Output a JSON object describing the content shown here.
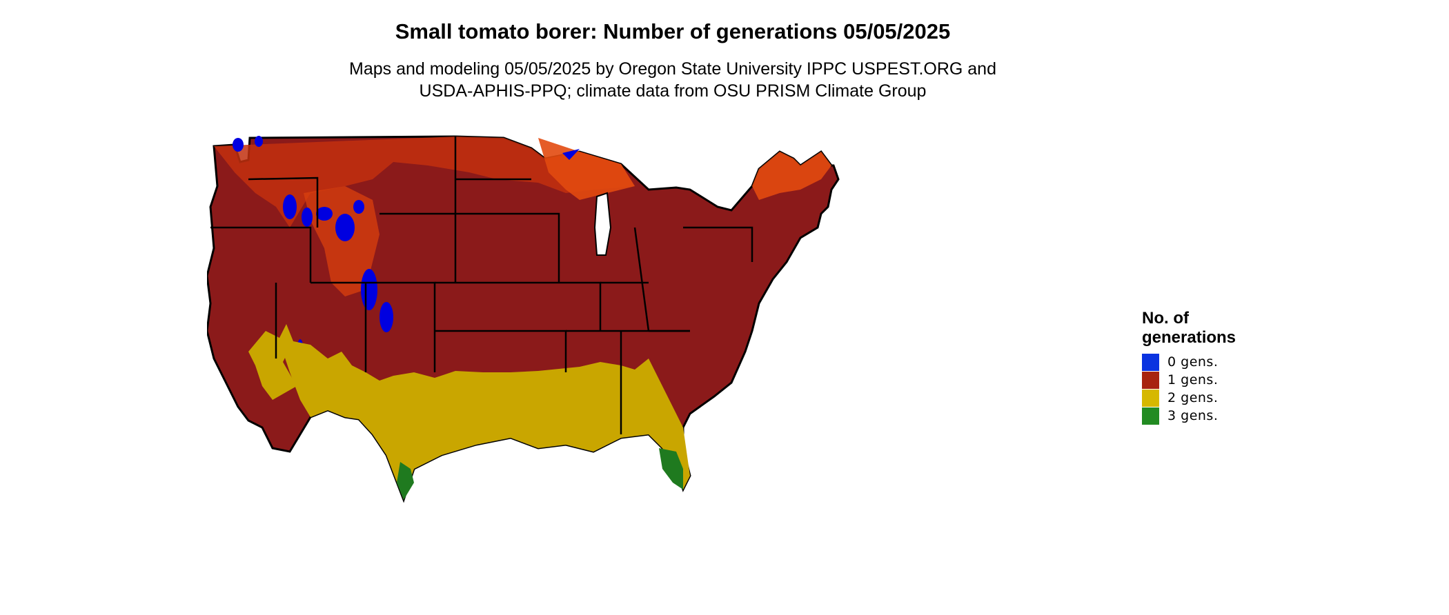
{
  "title": "Small tomato borer: Number of generations 05/05/2025",
  "subtitle": {
    "line1": "Maps and modeling 05/05/2025 by Oregon State University IPPC USPEST.ORG and",
    "line2": "USDA-APHIS-PPQ; climate data from OSU PRISM Climate Group"
  },
  "legend": {
    "title_line1": "No. of",
    "title_line2": "generations",
    "items": [
      {
        "label": "0 gens.",
        "color": "#0a33e0"
      },
      {
        "label": "1 gens.",
        "color": "#a8240f"
      },
      {
        "label": "2 gens.",
        "color": "#d6b800"
      },
      {
        "label": "3 gens.",
        "color": "#228b22"
      }
    ]
  },
  "colors": {
    "gen1_dark": "#8b1a1a",
    "gen1_light": "#e23a0c",
    "gen2": "#c9a600",
    "gen3": "#1f7a1f",
    "gen0": "#0000e0"
  }
}
